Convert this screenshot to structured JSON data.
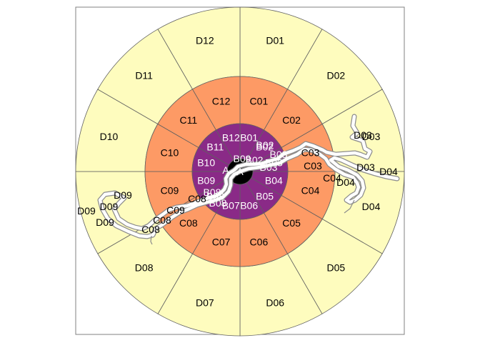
{
  "colors": {
    "panel_border": "#808080",
    "zone_border": "#606060",
    "zone_a": "#000000",
    "zone_b": "#8a2a87",
    "zone_c": "#fd9a65",
    "zone_d": "#fefcbe",
    "river": "#ffffff",
    "river_outline": "#8c8c8c",
    "label_dark": "#000000",
    "label_light": "#ffffff"
  },
  "center": {
    "label": "A"
  },
  "rings": [
    {
      "id": "B",
      "color_key": "zone_b",
      "label_color_key": "label_light",
      "labels": [
        "B01",
        "B02",
        "B03",
        "B04",
        "B05",
        "B06",
        "B07",
        "B08",
        "B09",
        "B10",
        "B11",
        "B12"
      ]
    },
    {
      "id": "C",
      "color_key": "zone_c",
      "label_color_key": "label_dark",
      "labels": [
        "C01",
        "C02",
        "C03",
        "C04",
        "C05",
        "C06",
        "C07",
        "C08",
        "C09",
        "C10",
        "C11",
        "C12"
      ]
    },
    {
      "id": "D",
      "color_key": "zone_d",
      "label_color_key": "label_dark",
      "labels": [
        "D01",
        "D02",
        "D03",
        "D04",
        "D05",
        "D06",
        "D07",
        "D08",
        "D09",
        "D10",
        "D11",
        "D12"
      ]
    }
  ],
  "river_labels": {
    "B": [
      "B02",
      "B03",
      "B08",
      "B09",
      "B02",
      "B03",
      "B08"
    ],
    "C": [
      "C03",
      "C04",
      "C08",
      "C09"
    ],
    "D": [
      "D03",
      "D04",
      "D09",
      "D03",
      "D04",
      "D04",
      "D09",
      "D09"
    ],
    "A": [
      "A"
    ]
  }
}
